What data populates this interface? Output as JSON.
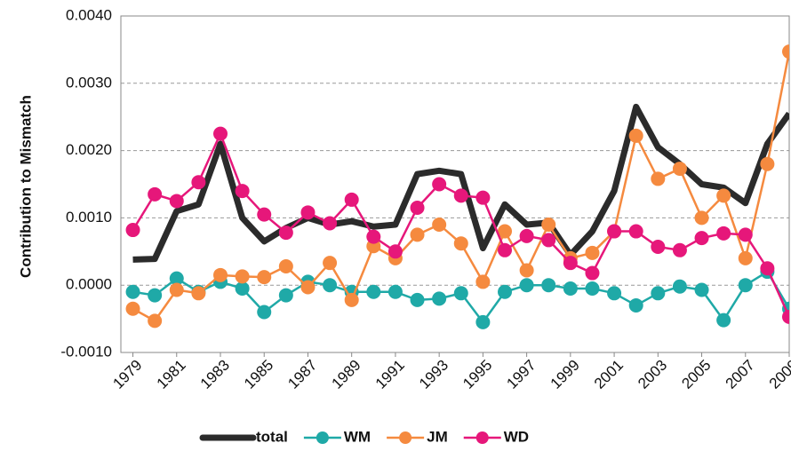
{
  "chart_data": {
    "type": "line",
    "ylabel": "Contribution to Mismatch",
    "x": [
      1979,
      1980,
      1981,
      1982,
      1983,
      1984,
      1985,
      1986,
      1987,
      1988,
      1989,
      1990,
      1991,
      1992,
      1993,
      1994,
      1995,
      1996,
      1997,
      1998,
      1999,
      2000,
      2001,
      2002,
      2003,
      2004,
      2005,
      2006,
      2007,
      2008,
      2009
    ],
    "xlim": [
      1978.45,
      2009
    ],
    "xticks": [
      1979,
      1981,
      1983,
      1985,
      1987,
      1989,
      1991,
      1993,
      1995,
      1997,
      1999,
      2001,
      2003,
      2005,
      2007,
      2009
    ],
    "ylim": [
      -0.001,
      0.004
    ],
    "yticks": [
      {
        "value": -0.001,
        "label": "-0.0010"
      },
      {
        "value": 0,
        "label": "0.0000"
      },
      {
        "value": 0.001,
        "label": "0.0010"
      },
      {
        "value": 0.002,
        "label": "0.0020"
      },
      {
        "value": 0.003,
        "label": "0.0030"
      },
      {
        "value": 0.004,
        "label": "0.0040"
      }
    ],
    "grid": true,
    "legend": "bottom",
    "series": [
      {
        "name": "total",
        "color": "#2b2b2b",
        "values": [
          0.00038,
          0.00039,
          0.0011,
          0.0012,
          0.0021,
          0.001,
          0.00065,
          0.00085,
          0.001,
          0.0009,
          0.00095,
          0.00087,
          0.0009,
          0.00165,
          0.0017,
          0.00165,
          0.00055,
          0.0012,
          0.0009,
          0.00093,
          0.00045,
          0.0008,
          0.0014,
          0.00265,
          0.00205,
          0.0018,
          0.0015,
          0.00145,
          0.00122,
          0.0021,
          0.00255
        ]
      },
      {
        "name": "WM",
        "color": "#1fa9a7",
        "values": [
          -0.0001,
          -0.00015,
          0.0001,
          -0.0001,
          5e-05,
          -5e-05,
          -0.0004,
          -0.00015,
          5e-05,
          0.0,
          -0.0001,
          -0.0001,
          -0.0001,
          -0.00022,
          -0.0002,
          -0.00012,
          -0.00055,
          -0.0001,
          0.0,
          0.0,
          -5e-05,
          -5e-05,
          -0.00012,
          -0.0003,
          -0.00012,
          -2e-05,
          -7e-05,
          -0.00052,
          0.0,
          0.0002,
          -0.00035
        ]
      },
      {
        "name": "JM",
        "color": "#f58a3f",
        "values": [
          -0.00035,
          -0.00053,
          -7e-05,
          -0.00012,
          0.00015,
          0.00013,
          0.00012,
          0.00028,
          -3e-05,
          0.00033,
          -0.00022,
          0.00058,
          0.0004,
          0.00075,
          0.0009,
          0.00062,
          5e-05,
          0.0008,
          0.00022,
          0.0009,
          0.0004,
          0.00048,
          0.0008,
          0.00222,
          0.00158,
          0.00173,
          0.001,
          0.00133,
          0.0004,
          0.0018,
          0.00347
        ]
      },
      {
        "name": "WD",
        "color": "#e6177a",
        "values": [
          0.00082,
          0.00135,
          0.00125,
          0.00153,
          0.00225,
          0.0014,
          0.00105,
          0.00078,
          0.00108,
          0.00092,
          0.00127,
          0.00072,
          0.0005,
          0.00115,
          0.0015,
          0.00133,
          0.0013,
          0.00052,
          0.00073,
          0.00067,
          0.00033,
          0.00018,
          0.0008,
          0.0008,
          0.00057,
          0.00052,
          0.0007,
          0.00077,
          0.00075,
          0.00025,
          -0.00047
        ]
      }
    ]
  }
}
